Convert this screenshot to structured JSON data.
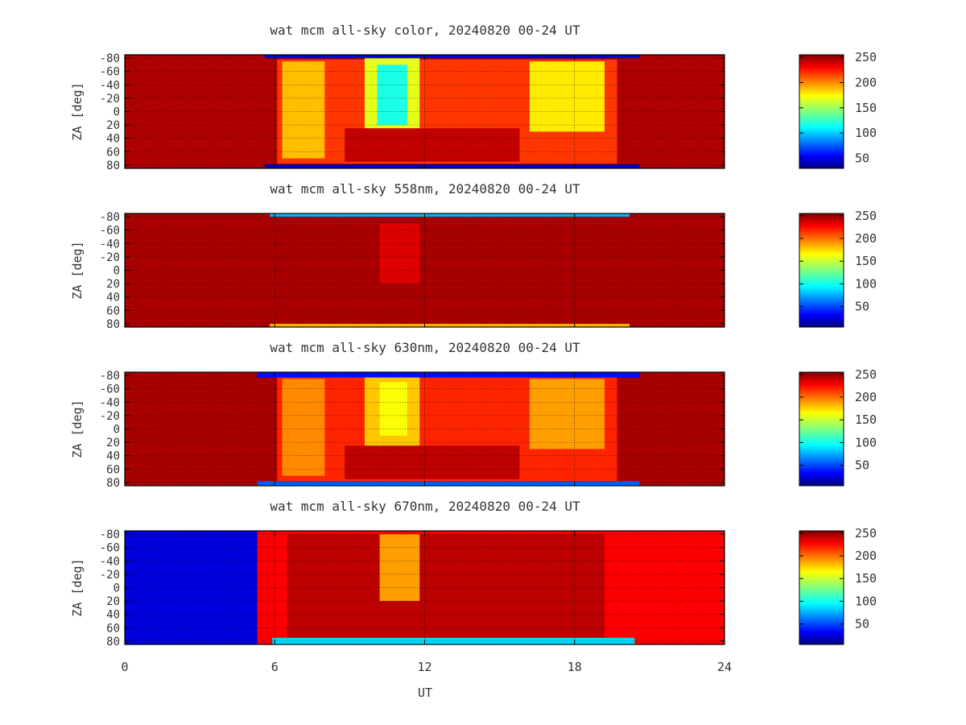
{
  "figure": {
    "xlabel": "UT",
    "x_ticks": [
      0,
      6,
      12,
      18,
      24
    ]
  },
  "chart_data": [
    {
      "type": "heatmap",
      "title": "wat mcm all-sky color, 20240820 00-24 UT",
      "xlabel": "UT",
      "ylabel": "ZA [deg]",
      "xlim": [
        0,
        24
      ],
      "ylim": [
        -85,
        85
      ],
      "y_ticks": [
        -80,
        -60,
        -40,
        -20,
        0,
        20,
        40,
        60,
        80
      ],
      "grid": true,
      "colorbar": {
        "ticks": [
          50,
          100,
          150,
          200,
          250
        ],
        "range": [
          30,
          255
        ],
        "colormap": "jet"
      },
      "background_value": 245,
      "regions": [
        {
          "t0": 6.1,
          "t1": 19.7,
          "z0": -78,
          "z1": 78,
          "v": 215
        },
        {
          "t0": 6.3,
          "t1": 8.0,
          "z0": -75,
          "z1": 70,
          "v": 185
        },
        {
          "t0": 16.2,
          "t1": 19.2,
          "z0": -75,
          "z1": 30,
          "v": 175
        },
        {
          "t0": 9.6,
          "t1": 11.8,
          "z0": -80,
          "z1": 40,
          "v": 165
        },
        {
          "t0": 10.1,
          "t1": 11.3,
          "z0": -70,
          "z1": 20,
          "v": 120
        },
        {
          "t0": 8.8,
          "t1": 15.8,
          "z0": 25,
          "z1": 75,
          "v": 240
        },
        {
          "t0": 5.6,
          "t1": 20.6,
          "z0": -85,
          "z1": -80,
          "v": 50
        },
        {
          "t0": 5.6,
          "t1": 20.6,
          "z0": 79,
          "z1": 85,
          "v": 45
        }
      ]
    },
    {
      "type": "heatmap",
      "title": "wat mcm all-sky 558nm, 20240820 00-24 UT",
      "xlabel": "UT",
      "ylabel": "ZA [deg]",
      "xlim": [
        0,
        24
      ],
      "ylim": [
        -85,
        85
      ],
      "y_ticks": [
        -80,
        -60,
        -40,
        -20,
        0,
        20,
        40,
        60,
        80
      ],
      "grid": true,
      "colorbar": {
        "ticks": [
          50,
          100,
          150,
          200,
          250
        ],
        "range": [
          5,
          255
        ],
        "colormap": "jet"
      },
      "background_value": 245,
      "regions": [
        {
          "t0": 10.2,
          "t1": 11.8,
          "z0": -70,
          "z1": 20,
          "v": 232
        },
        {
          "t0": 5.8,
          "t1": 20.2,
          "z0": -85,
          "z1": -80,
          "v": 80
        },
        {
          "t0": 5.8,
          "t1": 20.2,
          "z0": 80,
          "z1": 85,
          "v": 180
        }
      ]
    },
    {
      "type": "heatmap",
      "title": "wat mcm all-sky 630nm, 20240820 00-24 UT",
      "xlabel": "UT",
      "ylabel": "ZA [deg]",
      "xlim": [
        0,
        24
      ],
      "ylim": [
        -85,
        85
      ],
      "y_ticks": [
        -80,
        -60,
        -40,
        -20,
        0,
        20,
        40,
        60,
        80
      ],
      "grid": true,
      "colorbar": {
        "ticks": [
          50,
          100,
          150,
          200,
          250
        ],
        "range": [
          5,
          255
        ],
        "colormap": "jet"
      },
      "background_value": 245,
      "regions": [
        {
          "t0": 6.1,
          "t1": 19.7,
          "z0": -78,
          "z1": 78,
          "v": 215
        },
        {
          "t0": 6.3,
          "t1": 8.0,
          "z0": -75,
          "z1": 70,
          "v": 190
        },
        {
          "t0": 16.2,
          "t1": 19.2,
          "z0": -75,
          "z1": 30,
          "v": 185
        },
        {
          "t0": 9.6,
          "t1": 11.8,
          "z0": -80,
          "z1": 40,
          "v": 175
        },
        {
          "t0": 10.2,
          "t1": 11.3,
          "z0": -70,
          "z1": 10,
          "v": 160
        },
        {
          "t0": 8.8,
          "t1": 15.8,
          "z0": 25,
          "z1": 75,
          "v": 240
        },
        {
          "t0": 5.3,
          "t1": 20.6,
          "z0": -85,
          "z1": -77,
          "v": 40
        },
        {
          "t0": 5.3,
          "t1": 20.6,
          "z0": 78,
          "z1": 85,
          "v": 60
        }
      ]
    },
    {
      "type": "heatmap",
      "title": "wat mcm all-sky 670nm, 20240820 00-24 UT",
      "xlabel": "UT",
      "ylabel": "ZA [deg]",
      "xlim": [
        0,
        24
      ],
      "ylim": [
        -85,
        85
      ],
      "y_ticks": [
        -80,
        -60,
        -40,
        -20,
        0,
        20,
        40,
        60,
        80
      ],
      "grid": true,
      "colorbar": {
        "ticks": [
          50,
          100,
          150,
          200,
          250
        ],
        "range": [
          5,
          255
        ],
        "colormap": "jet"
      },
      "background_value": 225,
      "regions": [
        {
          "t0": 0,
          "t1": 5.3,
          "z0": -85,
          "z1": 85,
          "v": 28
        },
        {
          "t0": 6.5,
          "t1": 19.2,
          "z0": -80,
          "z1": 78,
          "v": 240
        },
        {
          "t0": 10.2,
          "t1": 11.8,
          "z0": -80,
          "z1": 20,
          "v": 185
        },
        {
          "t0": 5.9,
          "t1": 20.4,
          "z0": 75,
          "z1": 85,
          "v": 90
        }
      ]
    }
  ]
}
